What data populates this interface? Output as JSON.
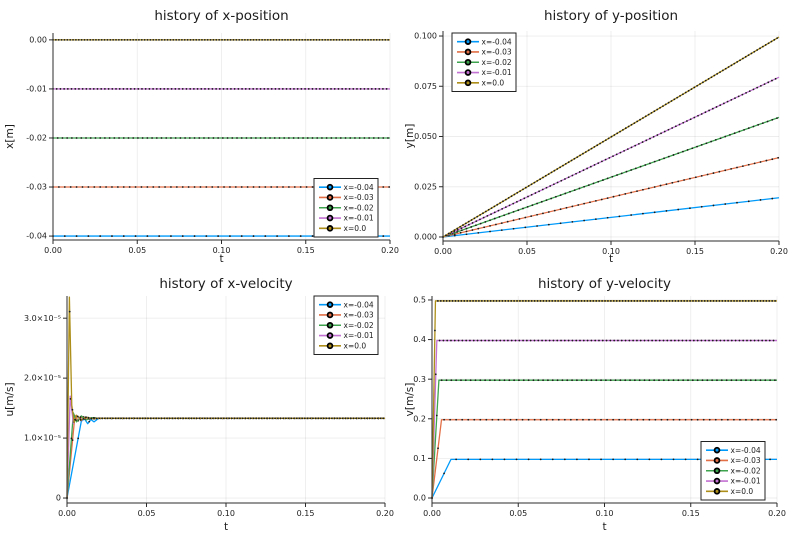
{
  "figure": {
    "background": "#ffffff",
    "marker_color": "#1a1a1a",
    "grid_color": "#000000",
    "spine_color": "#2b2b2b",
    "text_color": "#1c1c1c"
  },
  "series_labels": [
    "x=-0.04",
    "x=-0.03",
    "x=-0.02",
    "x=-0.01",
    "x=0.0"
  ],
  "palette": [
    "#009AFA",
    "#E36F47",
    "#3EA44E",
    "#C371D2",
    "#AC8E18"
  ],
  "chart_data": [
    {
      "type": "line",
      "title": "history of x-position",
      "xlabel": "t",
      "ylabel": "x[m]",
      "xlim": [
        0,
        0.2
      ],
      "ylim": [
        -0.0408,
        0.0014
      ],
      "grid": true,
      "legend_position": "bottomright",
      "xticks": {
        "values": [
          0,
          0.05,
          0.1,
          0.15,
          0.2
        ],
        "labels": [
          "0.00",
          "0.05",
          "0.10",
          "0.15",
          "0.20"
        ]
      },
      "yticks": {
        "values": [
          0,
          -0.01,
          -0.02,
          -0.03,
          -0.04
        ],
        "labels": [
          "0.00",
          "-0.01",
          "-0.02",
          "-0.03",
          "-0.04"
        ]
      },
      "series": [
        {
          "name": "x=-0.04",
          "color": "#009AFA",
          "marker_dt": 0.007,
          "points": [
            [
              0,
              -0.04
            ],
            [
              0.2,
              -0.04
            ]
          ]
        },
        {
          "name": "x=-0.03",
          "color": "#E36F47",
          "marker_dt": 0.0035,
          "points": [
            [
              0,
              -0.03
            ],
            [
              0.2,
              -0.03
            ]
          ]
        },
        {
          "name": "x=-0.02",
          "color": "#3EA44E",
          "marker_dt": 0.0028,
          "points": [
            [
              0,
              -0.02
            ],
            [
              0.2,
              -0.02
            ]
          ]
        },
        {
          "name": "x=-0.01",
          "color": "#C371D2",
          "marker_dt": 0.0022,
          "points": [
            [
              0,
              -0.01
            ],
            [
              0.2,
              -0.01
            ]
          ]
        },
        {
          "name": "x=0.0",
          "color": "#AC8E18",
          "marker_dt": 0.0017,
          "points": [
            [
              0,
              0
            ],
            [
              0.2,
              0
            ]
          ]
        }
      ]
    },
    {
      "type": "line",
      "title": "history of y-position",
      "xlabel": "t",
      "ylabel": "y[m]",
      "xlim": [
        0,
        0.2
      ],
      "ylim": [
        -0.002,
        0.1025
      ],
      "grid": true,
      "legend_position": "topleft",
      "xticks": {
        "values": [
          0,
          0.05,
          0.1,
          0.15,
          0.2
        ],
        "labels": [
          "0.00",
          "0.05",
          "0.10",
          "0.15",
          "0.20"
        ]
      },
      "yticks": {
        "values": [
          0,
          0.025,
          0.05,
          0.075,
          0.1
        ],
        "labels": [
          "0.000",
          "0.025",
          "0.050",
          "0.075",
          "0.100"
        ]
      },
      "series": [
        {
          "name": "x=-0.04",
          "color": "#009AFA",
          "marker_dt": 0.007,
          "points": [
            [
              0,
              0
            ],
            [
              0.2,
              0.0195
            ]
          ]
        },
        {
          "name": "x=-0.03",
          "color": "#E36F47",
          "marker_dt": 0.0035,
          "points": [
            [
              0,
              0
            ],
            [
              0.2,
              0.0395
            ]
          ]
        },
        {
          "name": "x=-0.02",
          "color": "#3EA44E",
          "marker_dt": 0.0028,
          "points": [
            [
              0,
              0
            ],
            [
              0.2,
              0.0595
            ]
          ]
        },
        {
          "name": "x=-0.01",
          "color": "#C371D2",
          "marker_dt": 0.0022,
          "points": [
            [
              0,
              0
            ],
            [
              0.2,
              0.0795
            ]
          ]
        },
        {
          "name": "x=0.0",
          "color": "#AC8E18",
          "marker_dt": 0.0017,
          "points": [
            [
              0,
              0
            ],
            [
              0.2,
              0.0995
            ]
          ]
        }
      ]
    },
    {
      "type": "line",
      "title": "history of x-velocity",
      "xlabel": "t",
      "ylabel": "u[m/s]",
      "xlim": [
        0,
        0.2
      ],
      "ylim": [
        -8.3e-07,
        3.37e-05
      ],
      "grid": true,
      "legend_position": "topright",
      "xticks": {
        "values": [
          0,
          0.05,
          0.1,
          0.15,
          0.2
        ],
        "labels": [
          "0.00",
          "0.05",
          "0.10",
          "0.15",
          "0.20"
        ]
      },
      "yticks": {
        "values": [
          0,
          1e-05,
          2e-05,
          3e-05
        ],
        "labels": [
          "0",
          "1.0×10⁻⁵",
          "2.0×10⁻⁵",
          "3.0×10⁻⁵"
        ]
      },
      "series": [
        {
          "name": "x=-0.04",
          "color": "#009AFA",
          "marker_dt": 0.007,
          "points": [
            [
              0,
              0
            ],
            [
              0.009,
              1.28e-05
            ],
            [
              0.011,
              1.32e-05
            ],
            [
              0.013,
              1.24e-05
            ],
            [
              0.015,
              1.31e-05
            ],
            [
              0.017,
              1.27e-05
            ],
            [
              0.02,
              1.33e-05
            ],
            [
              0.2,
              1.33e-05
            ]
          ]
        },
        {
          "name": "x=-0.03",
          "color": "#E36F47",
          "marker_dt": 0.0035,
          "points": [
            [
              0,
              0
            ],
            [
              0.005,
              1.38e-05
            ],
            [
              0.007,
              1.29e-05
            ],
            [
              0.01,
              1.36e-05
            ],
            [
              0.013,
              1.31e-05
            ],
            [
              0.016,
              1.34e-05
            ],
            [
              0.02,
              1.33e-05
            ],
            [
              0.2,
              1.33e-05
            ]
          ]
        },
        {
          "name": "x=-0.02",
          "color": "#3EA44E",
          "marker_dt": 0.0028,
          "points": [
            [
              0,
              0
            ],
            [
              0.004,
              1.42e-05
            ],
            [
              0.006,
              1.27e-05
            ],
            [
              0.009,
              1.37e-05
            ],
            [
              0.012,
              1.3e-05
            ],
            [
              0.015,
              1.34e-05
            ],
            [
              0.02,
              1.33e-05
            ],
            [
              0.2,
              1.33e-05
            ]
          ]
        },
        {
          "name": "x=-0.01",
          "color": "#C371D2",
          "marker_dt": 0.0022,
          "points": [
            [
              0,
              0
            ],
            [
              0.002,
              1.7e-05
            ],
            [
              0.004,
              1.24e-05
            ],
            [
              0.006,
              1.38e-05
            ],
            [
              0.009,
              1.29e-05
            ],
            [
              0.012,
              1.35e-05
            ],
            [
              0.016,
              1.32e-05
            ],
            [
              0.02,
              1.33e-05
            ],
            [
              0.2,
              1.33e-05
            ]
          ]
        },
        {
          "name": "x=0.0",
          "color": "#AC8E18",
          "marker_dt": 0.0017,
          "points": [
            [
              0,
              0
            ],
            [
              0.0015,
              3.35e-05
            ],
            [
              0.003,
              1.55e-05
            ],
            [
              0.0045,
              1.26e-05
            ],
            [
              0.006,
              1.38e-05
            ],
            [
              0.009,
              1.3e-05
            ],
            [
              0.012,
              1.35e-05
            ],
            [
              0.016,
              1.32e-05
            ],
            [
              0.02,
              1.33e-05
            ],
            [
              0.2,
              1.33e-05
            ]
          ]
        }
      ]
    },
    {
      "type": "line",
      "title": "history of y-velocity",
      "xlabel": "t",
      "ylabel": "v[m/s]",
      "xlim": [
        0,
        0.2
      ],
      "ylim": [
        -0.0126,
        0.51
      ],
      "grid": true,
      "legend_position": "bottomright",
      "xticks": {
        "values": [
          0,
          0.05,
          0.1,
          0.15,
          0.2
        ],
        "labels": [
          "0.00",
          "0.05",
          "0.10",
          "0.15",
          "0.20"
        ]
      },
      "yticks": {
        "values": [
          0,
          0.1,
          0.2,
          0.3,
          0.4,
          0.5
        ],
        "labels": [
          "0.0",
          "0.1",
          "0.2",
          "0.3",
          "0.4",
          "0.5"
        ]
      },
      "series": [
        {
          "name": "x=-0.04",
          "color": "#009AFA",
          "marker_dt": 0.007,
          "points": [
            [
              0,
              0
            ],
            [
              0.011,
              0.0975
            ],
            [
              0.2,
              0.0975
            ]
          ]
        },
        {
          "name": "x=-0.03",
          "color": "#E36F47",
          "marker_dt": 0.0035,
          "points": [
            [
              0,
              0
            ],
            [
              0.0055,
              0.1975
            ],
            [
              0.2,
              0.1975
            ]
          ]
        },
        {
          "name": "x=-0.02",
          "color": "#3EA44E",
          "marker_dt": 0.0028,
          "points": [
            [
              0,
              0
            ],
            [
              0.004,
              0.2975
            ],
            [
              0.2,
              0.2975
            ]
          ]
        },
        {
          "name": "x=-0.01",
          "color": "#C371D2",
          "marker_dt": 0.0022,
          "points": [
            [
              0,
              0
            ],
            [
              0.0028,
              0.3975
            ],
            [
              0.2,
              0.3975
            ]
          ]
        },
        {
          "name": "x=0.0",
          "color": "#AC8E18",
          "marker_dt": 0.0017,
          "points": [
            [
              0,
              0
            ],
            [
              0.002,
              0.4975
            ],
            [
              0.2,
              0.4975
            ]
          ]
        }
      ]
    }
  ]
}
